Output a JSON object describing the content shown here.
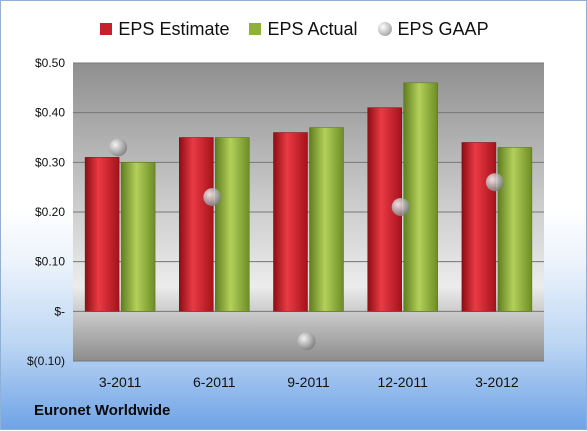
{
  "chart_data": {
    "type": "bar",
    "categories": [
      "3-2011",
      "6-2011",
      "9-2011",
      "12-2011",
      "3-2012"
    ],
    "series": [
      {
        "name": "EPS Estimate",
        "values": [
          0.31,
          0.35,
          0.36,
          0.41,
          0.34
        ],
        "color": "#c8202b"
      },
      {
        "name": "EPS Actual",
        "values": [
          0.3,
          0.35,
          0.37,
          0.46,
          0.33
        ],
        "color": "#8fb03a"
      },
      {
        "name": "EPS GAAP",
        "values": [
          0.33,
          0.23,
          -0.06,
          0.21,
          0.26
        ],
        "color": "#a8a8a8",
        "marker": "circle"
      }
    ],
    "ylim": [
      -0.1,
      0.5
    ],
    "yticks": [
      -0.1,
      0.0,
      0.1,
      0.2,
      0.3,
      0.4,
      0.5
    ],
    "ytick_labels": [
      "$(0.10)",
      "$-",
      "$0.10",
      "$0.20",
      "$0.30",
      "$0.40",
      "$0.50"
    ],
    "grid": true,
    "legend_position": "top"
  },
  "company": "Euronet Worldwide"
}
